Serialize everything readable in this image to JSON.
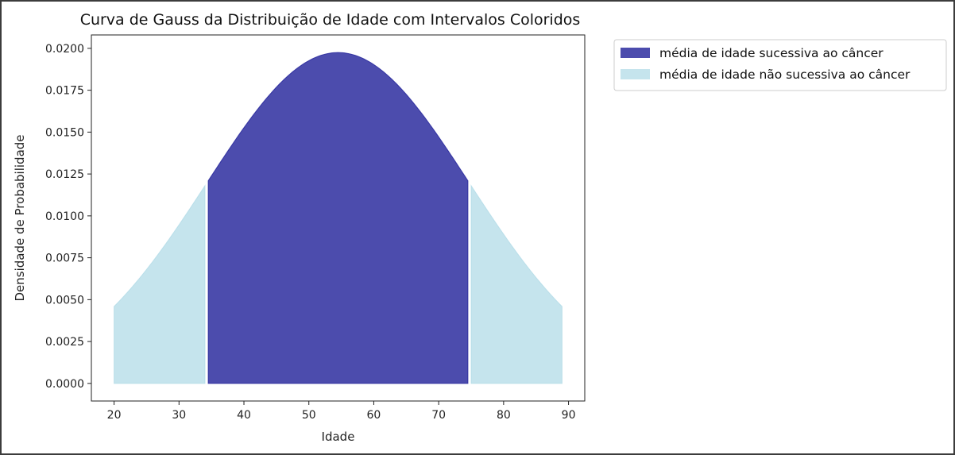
{
  "chart_data": {
    "type": "area",
    "title": "Curva de Gauss da Distribuição de Idade com Intervalos Coloridos",
    "xlabel": "Idade",
    "ylabel": "Densidade de Probabilidade",
    "xlim": [
      16.5,
      92.5
    ],
    "ylim": [
      -0.00105,
      0.0208
    ],
    "x_ticks": [
      20,
      30,
      40,
      50,
      60,
      70,
      80,
      90
    ],
    "y_ticks": [
      0.0,
      0.0025,
      0.005,
      0.0075,
      0.01,
      0.0125,
      0.015,
      0.0175,
      0.02
    ],
    "y_tick_labels": [
      "0.0000",
      "0.0025",
      "0.0050",
      "0.0075",
      "0.0100",
      "0.0125",
      "0.0150",
      "0.0175",
      "0.0200"
    ],
    "distribution": {
      "mean": 54.5,
      "std": 20.2,
      "x_range": [
        20,
        89
      ]
    },
    "series": [
      {
        "name": "média de idade sucessiva ao câncer",
        "color": "#1f1f99",
        "alpha": 0.8,
        "intervals": [
          [
            34.5,
            74.5
          ]
        ]
      },
      {
        "name": "média de idade não sucessiva ao câncer",
        "color": "#add8e6",
        "alpha": 0.7,
        "intervals": [
          [
            20,
            34.0
          ],
          [
            75.0,
            89
          ]
        ]
      }
    ],
    "legend_position": "outside-top-right",
    "grid": false
  }
}
